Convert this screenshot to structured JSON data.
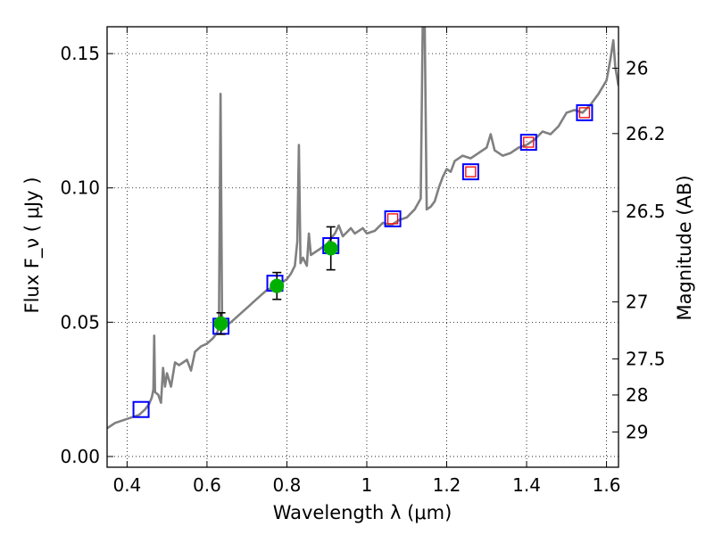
{
  "chart_data": {
    "type": "line",
    "xlabel": "Wavelength  λ (μm)",
    "ylabel": "Flux  F_ν  ( μJy )",
    "ylabel_right": "Magnitude (AB)",
    "xlim": [
      0.35,
      1.63
    ],
    "ylim": [
      -0.004,
      0.16
    ],
    "grid": true,
    "x_ticks": [
      {
        "value": 0.4,
        "label": "0.4"
      },
      {
        "value": 0.6,
        "label": "0.6"
      },
      {
        "value": 0.8,
        "label": "0.8"
      },
      {
        "value": 1.0,
        "label": "1"
      },
      {
        "value": 1.2,
        "label": "1.2"
      },
      {
        "value": 1.4,
        "label": "1.4"
      },
      {
        "value": 1.6,
        "label": "1.6"
      }
    ],
    "y_ticks": [
      {
        "value": 0.0,
        "label": "0.00"
      },
      {
        "value": 0.05,
        "label": "0.05"
      },
      {
        "value": 0.1,
        "label": "0.10"
      },
      {
        "value": 0.15,
        "label": "0.15"
      }
    ],
    "right_ticks": [
      {
        "value": 26,
        "label": "26"
      },
      {
        "value": 26.2,
        "label": "26.2"
      },
      {
        "value": 26.5,
        "label": "26.5"
      },
      {
        "value": 27,
        "label": "27"
      },
      {
        "value": 27.5,
        "label": "27.5"
      },
      {
        "value": 28,
        "label": "28"
      },
      {
        "value": 29,
        "label": "29"
      }
    ],
    "series": [
      {
        "style": "line",
        "color": "#808080",
        "points": [
          [
            0.35,
            0.0105
          ],
          [
            0.37,
            0.0125
          ],
          [
            0.39,
            0.0135
          ],
          [
            0.41,
            0.0145
          ],
          [
            0.43,
            0.0155
          ],
          [
            0.445,
            0.0175
          ],
          [
            0.455,
            0.0195
          ],
          [
            0.462,
            0.022
          ],
          [
            0.466,
            0.025
          ],
          [
            0.468,
            0.045
          ],
          [
            0.47,
            0.024
          ],
          [
            0.478,
            0.023
          ],
          [
            0.485,
            0.02
          ],
          [
            0.49,
            0.033
          ],
          [
            0.495,
            0.026
          ],
          [
            0.5,
            0.031
          ],
          [
            0.51,
            0.026
          ],
          [
            0.52,
            0.035
          ],
          [
            0.53,
            0.034
          ],
          [
            0.54,
            0.035
          ],
          [
            0.55,
            0.036
          ],
          [
            0.56,
            0.032
          ],
          [
            0.57,
            0.039
          ],
          [
            0.585,
            0.041
          ],
          [
            0.6,
            0.042
          ],
          [
            0.615,
            0.044
          ],
          [
            0.625,
            0.046
          ],
          [
            0.63,
            0.048
          ],
          [
            0.634,
            0.135
          ],
          [
            0.638,
            0.047
          ],
          [
            0.65,
            0.049
          ],
          [
            0.66,
            0.05
          ],
          [
            0.675,
            0.052
          ],
          [
            0.69,
            0.054
          ],
          [
            0.705,
            0.056
          ],
          [
            0.72,
            0.058
          ],
          [
            0.735,
            0.06
          ],
          [
            0.75,
            0.062
          ],
          [
            0.765,
            0.063
          ],
          [
            0.78,
            0.064
          ],
          [
            0.79,
            0.065
          ],
          [
            0.8,
            0.066
          ],
          [
            0.81,
            0.068
          ],
          [
            0.82,
            0.071
          ],
          [
            0.826,
            0.08
          ],
          [
            0.83,
            0.116
          ],
          [
            0.834,
            0.072
          ],
          [
            0.84,
            0.074
          ],
          [
            0.85,
            0.071
          ],
          [
            0.855,
            0.083
          ],
          [
            0.86,
            0.075
          ],
          [
            0.87,
            0.076
          ],
          [
            0.88,
            0.077
          ],
          [
            0.89,
            0.078
          ],
          [
            0.9,
            0.079
          ],
          [
            0.91,
            0.081
          ],
          [
            0.92,
            0.083
          ],
          [
            0.93,
            0.086
          ],
          [
            0.94,
            0.082
          ],
          [
            0.96,
            0.085
          ],
          [
            0.97,
            0.083
          ],
          [
            0.98,
            0.084
          ],
          [
            0.99,
            0.085
          ],
          [
            1.0,
            0.083
          ],
          [
            1.02,
            0.084
          ],
          [
            1.04,
            0.087
          ],
          [
            1.06,
            0.086
          ],
          [
            1.08,
            0.088
          ],
          [
            1.1,
            0.089
          ],
          [
            1.12,
            0.092
          ],
          [
            1.135,
            0.096
          ],
          [
            1.14,
            0.16
          ],
          [
            1.145,
            0.16
          ],
          [
            1.15,
            0.092
          ],
          [
            1.16,
            0.093
          ],
          [
            1.17,
            0.095
          ],
          [
            1.18,
            0.1
          ],
          [
            1.19,
            0.104
          ],
          [
            1.2,
            0.107
          ],
          [
            1.21,
            0.106
          ],
          [
            1.22,
            0.11
          ],
          [
            1.24,
            0.112
          ],
          [
            1.26,
            0.111
          ],
          [
            1.28,
            0.113
          ],
          [
            1.3,
            0.115
          ],
          [
            1.31,
            0.12
          ],
          [
            1.32,
            0.114
          ],
          [
            1.34,
            0.112
          ],
          [
            1.36,
            0.113
          ],
          [
            1.38,
            0.115
          ],
          [
            1.4,
            0.116
          ],
          [
            1.42,
            0.118
          ],
          [
            1.44,
            0.121
          ],
          [
            1.46,
            0.12
          ],
          [
            1.48,
            0.123
          ],
          [
            1.5,
            0.128
          ],
          [
            1.52,
            0.129
          ],
          [
            1.54,
            0.128
          ],
          [
            1.56,
            0.131
          ],
          [
            1.58,
            0.135
          ],
          [
            1.6,
            0.14
          ],
          [
            1.61,
            0.148
          ],
          [
            1.617,
            0.155
          ],
          [
            1.622,
            0.145
          ],
          [
            1.63,
            0.138
          ]
        ]
      },
      {
        "style": "square-markers",
        "edge_color": "#0000ff",
        "points": [
          [
            0.435,
            0.0175
          ],
          [
            0.635,
            0.0485
          ],
          [
            0.77,
            0.0645
          ],
          [
            0.91,
            0.0785
          ],
          [
            1.065,
            0.0885
          ],
          [
            1.26,
            0.106
          ],
          [
            1.405,
            0.117
          ],
          [
            1.545,
            0.128
          ]
        ]
      },
      {
        "style": "square-markers",
        "edge_color": "#ff0000",
        "points": [
          [
            1.065,
            0.0885
          ],
          [
            1.26,
            0.106
          ],
          [
            1.405,
            0.117
          ],
          [
            1.545,
            0.128
          ]
        ]
      },
      {
        "style": "circle-markers",
        "color": "#00b000",
        "points": [
          [
            0.635,
            0.0495
          ],
          [
            0.775,
            0.0635
          ],
          [
            0.91,
            0.0775
          ]
        ],
        "errors": [
          0.004,
          0.005,
          0.008
        ]
      }
    ]
  }
}
